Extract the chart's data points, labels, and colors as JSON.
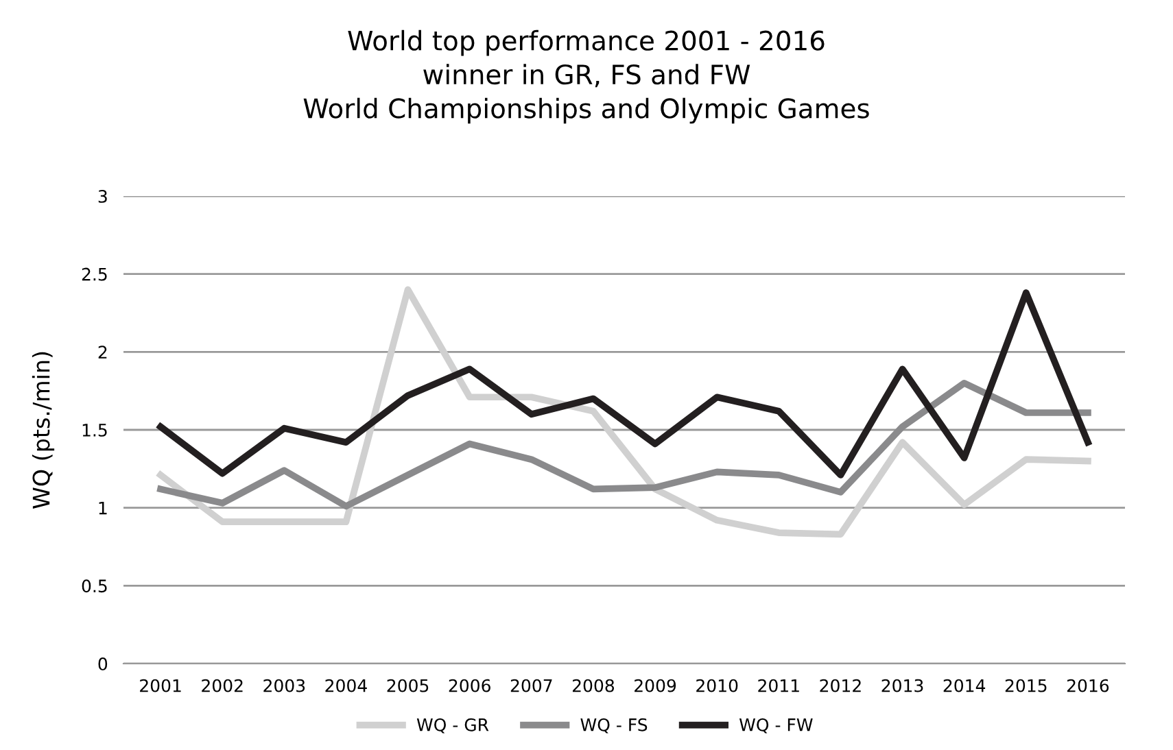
{
  "chart_data": {
    "type": "line",
    "title": "World top performance 2001 - 2016\nwinner in GR, FS and FW\nWorld Championships and Olympic Games",
    "ylabel": "WQ (pts./min)",
    "categories": [
      "2001",
      "2002",
      "2003",
      "2004",
      "2005",
      "2006",
      "2007",
      "2008",
      "2009",
      "2010",
      "2011",
      "2012",
      "2013",
      "2014",
      "2015",
      "2016"
    ],
    "series": [
      {
        "name": "WQ - GR",
        "color": "#d0d0d0",
        "values": [
          1.21,
          0.91,
          0.91,
          0.91,
          2.4,
          1.71,
          1.71,
          1.62,
          1.12,
          0.92,
          0.84,
          0.83,
          1.42,
          1.02,
          1.31,
          1.3
        ]
      },
      {
        "name": "WQ - FS",
        "color": "#8a8a8c",
        "values": [
          1.12,
          1.03,
          1.24,
          1.01,
          1.21,
          1.41,
          1.31,
          1.12,
          1.13,
          1.23,
          1.21,
          1.1,
          1.52,
          1.8,
          1.61,
          1.61
        ]
      },
      {
        "name": "WQ - FW",
        "color": "#231f20",
        "values": [
          1.52,
          1.22,
          1.51,
          1.42,
          1.72,
          1.89,
          1.6,
          1.7,
          1.41,
          1.71,
          1.62,
          1.21,
          1.89,
          1.32,
          2.38,
          1.42
        ]
      }
    ],
    "ylim": [
      0,
      3
    ],
    "yticks": [
      0,
      0.5,
      1,
      1.5,
      2,
      2.5,
      3
    ],
    "grid": "y",
    "legend": "bottom",
    "marker": "none",
    "line_style": "solid"
  }
}
